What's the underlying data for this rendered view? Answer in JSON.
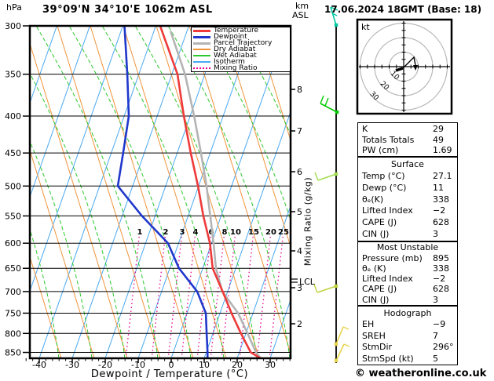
{
  "header": {
    "pressure_unit": "hPa",
    "station": "39°09'N 34°10'E 1062m ASL",
    "km": "km",
    "asl": "ASL",
    "datetime": "17.06.2024 18GMT (Base: 18)"
  },
  "axes": {
    "x_label": "Dewpoint / Temperature (°C)",
    "right_label": "Mixing Ratio (g/kg)",
    "lcl_label": "LCL"
  },
  "legend": {
    "items": [
      {
        "label": "Temperature",
        "color": "#ee3a3a",
        "swatch": "thick"
      },
      {
        "label": "Dewpoint",
        "color": "#2038cc",
        "swatch": "thick"
      },
      {
        "label": "Parcel Trajectory",
        "color": "#b4b4b4",
        "swatch": "thick"
      },
      {
        "label": "Dry Adiabat",
        "color": "#f0943c",
        "swatch": "thin"
      },
      {
        "label": "Wet Adiabat",
        "color": "#2cc82c",
        "swatch": "thin"
      },
      {
        "label": "Isotherm",
        "color": "#4aa8f0",
        "swatch": "thin"
      },
      {
        "label": "Mixing Ratio",
        "color": "#e60090",
        "swatch": "dotted"
      }
    ]
  },
  "chart_data": {
    "type": "line",
    "variant": "skew-T log-p sounding",
    "title": "39°09'N 34°10'E 1062m ASL",
    "xlabel": "Dewpoint / Temperature (°C)",
    "x_ticks": [
      -40,
      -30,
      -20,
      -10,
      0,
      10,
      20,
      30
    ],
    "pressure_ticks_hPa": [
      300,
      350,
      400,
      450,
      500,
      550,
      600,
      650,
      700,
      750,
      800,
      850
    ],
    "pressure_range_hPa": [
      300,
      866
    ],
    "km_asl_ticks": [
      8,
      7,
      6,
      5,
      4,
      3,
      2
    ],
    "mixing_ratio_labels": [
      "1",
      "2",
      "3",
      "4",
      "6",
      "8",
      "10",
      "15",
      "20",
      "25"
    ],
    "lcl": {
      "label": "LCL",
      "pressure_hPa": 690
    },
    "series": [
      {
        "name": "Temperature",
        "color": "#ee3a3a",
        "points_p_t": [
          [
            300,
            -38.7
          ],
          [
            350,
            -28.3
          ],
          [
            400,
            -21.9
          ],
          [
            450,
            -15.9
          ],
          [
            500,
            -10.2
          ],
          [
            550,
            -5.4
          ],
          [
            600,
            -0.5
          ],
          [
            650,
            3.0
          ],
          [
            700,
            8.5
          ],
          [
            750,
            13.5
          ],
          [
            800,
            18.5
          ],
          [
            850,
            23.5
          ],
          [
            866,
            27.1
          ]
        ]
      },
      {
        "name": "Dewpoint",
        "color": "#2038cc",
        "points_p_t": [
          [
            300,
            -49.5
          ],
          [
            350,
            -43.5
          ],
          [
            400,
            -38.6
          ],
          [
            450,
            -36.4
          ],
          [
            500,
            -34.5
          ],
          [
            550,
            -24.0
          ],
          [
            600,
            -13.2
          ],
          [
            650,
            -7.2
          ],
          [
            700,
            0.8
          ],
          [
            750,
            5.7
          ],
          [
            800,
            8.1
          ],
          [
            850,
            10.4
          ],
          [
            866,
            11.0
          ]
        ]
      },
      {
        "name": "Parcel Trajectory",
        "color": "#b4b4b4",
        "points_p_t": [
          [
            305,
            -35.0
          ],
          [
            350,
            -26.0
          ],
          [
            400,
            -18.8
          ],
          [
            450,
            -12.8
          ],
          [
            500,
            -7.6
          ],
          [
            550,
            -3.3
          ],
          [
            600,
            0.6
          ],
          [
            650,
            4.0
          ],
          [
            700,
            8.4
          ],
          [
            750,
            15.5
          ],
          [
            800,
            20.5
          ],
          [
            850,
            25.1
          ],
          [
            866,
            27.1
          ]
        ]
      }
    ],
    "background_colors": {
      "isotherm": "#4aa8f0",
      "dry_adiabat": "#f0943c",
      "wet_adiabat": "#2cc82c",
      "mixing_ratio": "#e60090"
    },
    "wind_barbs": [
      {
        "color": "#00c8a0"
      },
      {
        "color": "#00cc00"
      },
      {
        "color": "#a0dc50"
      },
      {
        "color": "#c0d23c"
      },
      {
        "color": "#e8d44a"
      },
      {
        "color": "#e8d44a"
      }
    ]
  },
  "hodograph": {
    "unit": "kt",
    "ring_labels": [
      "10",
      "20",
      "30"
    ]
  },
  "tables": [
    {
      "title": "",
      "rows": [
        [
          "K",
          "29"
        ],
        [
          "Totals Totals",
          "49"
        ],
        [
          "PW (cm)",
          "1.69"
        ]
      ]
    },
    {
      "title": "Surface",
      "rows": [
        [
          "Temp (°C)",
          "27.1"
        ],
        [
          "Dewp (°C)",
          "11"
        ],
        [
          "θₑ(K)",
          "338"
        ],
        [
          "Lifted Index",
          "−2"
        ],
        [
          "CAPE (J)",
          "628"
        ],
        [
          "CIN (J)",
          "3"
        ]
      ]
    },
    {
      "title": "Most Unstable",
      "rows": [
        [
          "Pressure (mb)",
          "895"
        ],
        [
          "θₑ (K)",
          "338"
        ],
        [
          "Lifted Index",
          "−2"
        ],
        [
          "CAPE (J)",
          "628"
        ],
        [
          "CIN (J)",
          "3"
        ]
      ]
    },
    {
      "title": "Hodograph",
      "rows": [
        [
          "EH",
          "−9"
        ],
        [
          "SREH",
          "7"
        ],
        [
          "StmDir",
          "296°"
        ],
        [
          "StmSpd (kt)",
          "5"
        ]
      ]
    }
  ],
  "footer": {
    "text": "© weatheronline.co.uk"
  }
}
